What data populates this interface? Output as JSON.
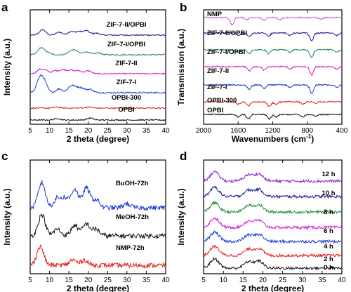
{
  "chart_data": [
    {
      "panel": "a",
      "type": "line",
      "xlabel": "2 theta (degree)",
      "ylabel": "Intensity (a.u.)",
      "xlim": [
        5,
        40
      ],
      "xticks": [
        5,
        10,
        15,
        20,
        25,
        30,
        35,
        40
      ],
      "series": [
        {
          "name": "ZIF-7-II/OPBI",
          "color": "#1a1a8c",
          "peaks": [
            [
              8.2,
              0.55
            ],
            [
              12.5,
              0.3
            ],
            [
              15.5,
              0.35
            ],
            [
              17.5,
              0.35
            ],
            [
              19.5,
              0.45
            ],
            [
              22,
              0.2
            ]
          ]
        },
        {
          "name": "ZIF-7-I/OPBI",
          "color": "#1a8a5a",
          "peaks": [
            [
              7.8,
              0.7
            ],
            [
              9.5,
              0.2
            ],
            [
              15.5,
              0.35
            ],
            [
              16.8,
              0.35
            ],
            [
              19.5,
              0.3
            ],
            [
              22.5,
              0.2
            ]
          ]
        },
        {
          "name": "ZIF-7-II",
          "color": "#d21ad2",
          "peaks": [
            [
              7.5,
              0.4
            ],
            [
              9,
              0.3
            ],
            [
              11.5,
              0.3
            ],
            [
              13.5,
              0.4
            ],
            [
              15.5,
              0.35
            ],
            [
              17.5,
              0.3
            ],
            [
              20,
              0.3
            ]
          ]
        },
        {
          "name": "ZIF-7-I",
          "color": "#1a3ad2",
          "peaks": [
            [
              7.4,
              1.0
            ],
            [
              8.6,
              0.8
            ],
            [
              12.5,
              0.3
            ],
            [
              15.5,
              0.5
            ],
            [
              17,
              0.35
            ],
            [
              18.5,
              0.3
            ],
            [
              20.5,
              0.25
            ]
          ]
        },
        {
          "name": "OPBI-300",
          "color": "#e02020",
          "peaks": [
            [
              12,
              0.1
            ],
            [
              20,
              0.1
            ]
          ]
        },
        {
          "name": "OPBI",
          "color": "#111111",
          "peaks": [
            [
              12,
              0.15
            ],
            [
              20.5,
              0.2
            ]
          ]
        }
      ]
    },
    {
      "panel": "b",
      "type": "line",
      "xlabel": "Wavenumbers (cm",
      "xlabel_sup": "-1",
      "xlabel_end": ")",
      "ylabel": "Transmission (a.u.)",
      "xlim": [
        2000,
        400
      ],
      "xticks": [
        2000,
        1600,
        1200,
        800,
        400
      ],
      "series": [
        {
          "name": "NMP",
          "color": "#cc55cc",
          "dips": [
            [
              1670,
              0.9
            ],
            [
              1500,
              0.25
            ],
            [
              1300,
              0.3
            ],
            [
              1115,
              0.25
            ],
            [
              650,
              0.2
            ]
          ]
        },
        {
          "name": "ZIF-7-II/OPBI",
          "color": "#1a1a8c",
          "dips": [
            [
              1600,
              0.3
            ],
            [
              1470,
              0.45
            ],
            [
              1250,
              0.4
            ],
            [
              1000,
              0.3
            ],
            [
              750,
              0.9
            ],
            [
              460,
              0.3
            ]
          ]
        },
        {
          "name": "ZIF-7-I/OPBI",
          "color": "#1a8a5a",
          "dips": [
            [
              1600,
              0.3
            ],
            [
              1470,
              0.45
            ],
            [
              1250,
              0.45
            ],
            [
              1000,
              0.3
            ],
            [
              750,
              0.9
            ],
            [
              460,
              0.3
            ]
          ]
        },
        {
          "name": "ZIF-7-II",
          "color": "#d21ad2",
          "dips": [
            [
              1470,
              0.5
            ],
            [
              1300,
              0.4
            ],
            [
              1000,
              0.3
            ],
            [
              750,
              1.0
            ],
            [
              460,
              0.3
            ]
          ]
        },
        {
          "name": "ZIF-7-I",
          "color": "#1a3ad2",
          "dips": [
            [
              1470,
              0.5
            ],
            [
              1300,
              0.4
            ],
            [
              1000,
              0.3
            ],
            [
              750,
              1.0
            ],
            [
              460,
              0.3
            ]
          ]
        },
        {
          "name": "OPBI-300",
          "color": "#e02020",
          "dips": [
            [
              1600,
              0.3
            ],
            [
              1480,
              0.5
            ],
            [
              1240,
              0.55
            ],
            [
              1160,
              0.3
            ],
            [
              850,
              0.3
            ],
            [
              700,
              0.2
            ]
          ]
        },
        {
          "name": "OPBI",
          "color": "#111111",
          "dips": [
            [
              1600,
              0.3
            ],
            [
              1480,
              0.5
            ],
            [
              1240,
              0.55
            ],
            [
              1160,
              0.3
            ],
            [
              850,
              0.3
            ],
            [
              700,
              0.2
            ]
          ]
        }
      ]
    },
    {
      "panel": "c",
      "type": "line",
      "xlabel": "2 theta (degree)",
      "ylabel": "Intensity (a.u.)",
      "xlim": [
        5,
        40
      ],
      "xticks": [
        5,
        10,
        15,
        20,
        25,
        30,
        35,
        40
      ],
      "series": [
        {
          "name": "BuOH-72h",
          "color": "#1a3ad2",
          "peaks": [
            [
              8,
              0.95
            ],
            [
              12,
              0.35
            ],
            [
              14,
              0.35
            ],
            [
              16.5,
              0.7
            ],
            [
              19.5,
              0.75
            ],
            [
              22,
              0.3
            ],
            [
              30,
              0.15
            ]
          ]
        },
        {
          "name": "MeOH-72h",
          "color": "#111111",
          "peaks": [
            [
              8,
              0.8
            ],
            [
              12,
              0.25
            ],
            [
              16.5,
              0.4
            ],
            [
              19.5,
              0.45
            ],
            [
              22,
              0.25
            ]
          ]
        },
        {
          "name": "NMP-72h",
          "color": "#e02020",
          "peaks": [
            [
              7.6,
              0.7
            ],
            [
              16,
              0.2
            ],
            [
              19,
              0.2
            ]
          ]
        }
      ]
    },
    {
      "panel": "d",
      "type": "line",
      "xlabel": "2 theta (degree)",
      "ylabel": "Intensity (a.u.)",
      "xlim": [
        5,
        40
      ],
      "xticks": [
        5,
        10,
        15,
        20,
        25,
        30,
        35,
        40
      ],
      "series": [
        {
          "name": "12 h",
          "color": "#8822cc"
        },
        {
          "name": "10 h",
          "color": "#1a1a8c"
        },
        {
          "name": "8 h",
          "color": "#1a8a3a"
        },
        {
          "name": "6 h",
          "color": "#d21ad2"
        },
        {
          "name": "4 h",
          "color": "#1a3ad2"
        },
        {
          "name": "2 h",
          "color": "#e02020"
        },
        {
          "name": "0 h",
          "color": "#111111"
        }
      ],
      "peaks": [
        [
          7.8,
          0.6
        ],
        [
          16.3,
          0.4
        ],
        [
          19,
          0.45
        ]
      ]
    }
  ]
}
